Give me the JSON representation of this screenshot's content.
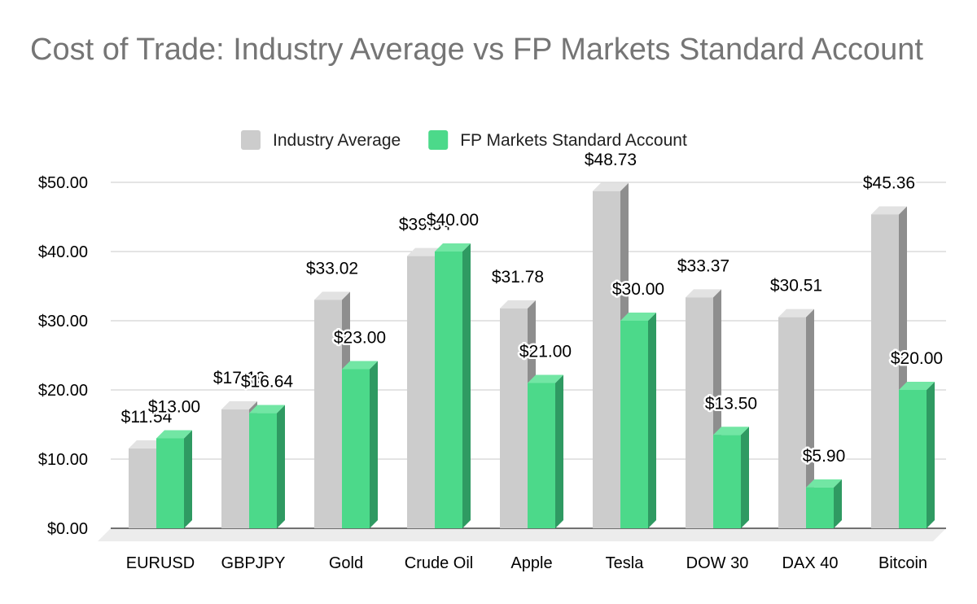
{
  "chart_data": {
    "type": "bar",
    "title": "Cost of Trade: Industry Average vs FP Markets Standard Account",
    "categories": [
      "EURUSD",
      "GBPJPY",
      "Gold",
      "Crude Oil",
      "Apple",
      "Tesla",
      "DOW 30",
      "DAX 40",
      "Bitcoin"
    ],
    "series": [
      {
        "name": "Industry Average",
        "color": "#cccccc",
        "values": [
          11.54,
          17.19,
          33.02,
          39.34,
          31.78,
          48.73,
          33.37,
          30.51,
          45.36
        ],
        "labels": [
          "$11.54",
          "$17.19",
          "$33.02",
          "$39.34",
          "$31.78",
          "$48.73",
          "$33.37",
          "$30.51",
          "$45.36"
        ]
      },
      {
        "name": "FP Markets Standard Account",
        "color": "#4cd98a",
        "values": [
          13.0,
          16.64,
          23.0,
          40.0,
          21.0,
          30.0,
          13.5,
          5.9,
          20.0
        ],
        "labels": [
          "$13.00",
          "$16.64",
          "$23.00",
          "$40.00",
          "$21.00",
          "$30.00",
          "$13.50",
          "$5.90",
          "$20.00"
        ]
      }
    ],
    "yticks": [
      "$0.00",
      "$10.00",
      "$20.00",
      "$30.00",
      "$40.00",
      "$50.00"
    ],
    "ylim": [
      0,
      50
    ],
    "grid": true,
    "legend": "top",
    "xlabel": "",
    "ylabel": ""
  }
}
